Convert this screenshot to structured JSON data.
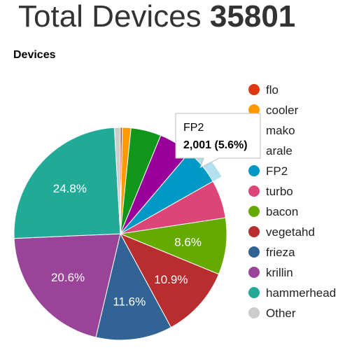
{
  "header": {
    "title_prefix": "Total Devices",
    "total": "35801"
  },
  "chart_data": {
    "type": "pie",
    "title": "Devices",
    "legend_position": "right",
    "slices": [
      {
        "name": "flo",
        "percent": 0.3,
        "color": "#dc3912"
      },
      {
        "name": "cooler",
        "percent": 1.3,
        "color": "#ff9900"
      },
      {
        "name": "mako",
        "percent": 4.6,
        "color": "#109618"
      },
      {
        "name": "arale",
        "percent": 5.0,
        "color": "#990099"
      },
      {
        "name": "FP2",
        "percent": 5.6,
        "color": "#0099c6",
        "value": 2001
      },
      {
        "name": "turbo",
        "percent": 5.8,
        "color": "#dd4477"
      },
      {
        "name": "bacon",
        "percent": 8.6,
        "color": "#66aa00"
      },
      {
        "name": "vegetahd",
        "percent": 10.9,
        "color": "#b82e2e"
      },
      {
        "name": "frieza",
        "percent": 11.6,
        "color": "#316395"
      },
      {
        "name": "krillin",
        "percent": 20.6,
        "color": "#994499"
      },
      {
        "name": "hammerhead",
        "percent": 24.8,
        "color": "#22aa99"
      },
      {
        "name": "Other",
        "percent": 0.9,
        "color": "#cccccc"
      }
    ],
    "slice_labels": [
      {
        "slice": "bacon",
        "text": "8.6%"
      },
      {
        "slice": "vegetahd",
        "text": "10.9%"
      },
      {
        "slice": "frieza",
        "text": "11.6%"
      },
      {
        "slice": "krillin",
        "text": "20.6%"
      },
      {
        "slice": "hammerhead",
        "text": "24.8%"
      }
    ],
    "highlighted": "FP2",
    "tooltip": {
      "name": "FP2",
      "value_text": "2,001 (5.6%)"
    }
  }
}
